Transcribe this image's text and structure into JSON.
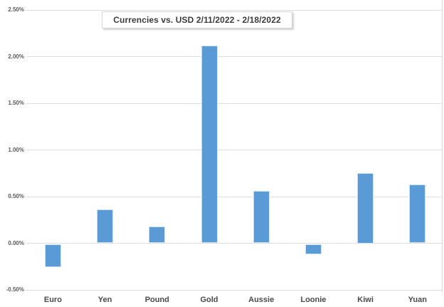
{
  "title": "Currencies vs. USD 2/11/2022 - 2/18/2022",
  "chart_data": {
    "type": "bar",
    "title": "Currencies vs. USD 2/11/2022 - 2/18/2022",
    "categories": [
      "Euro",
      "Yen",
      "Pound",
      "Gold",
      "Aussie",
      "Loonie",
      "Kiwi",
      "Yuan"
    ],
    "values": [
      -0.25,
      0.36,
      0.18,
      2.12,
      0.56,
      -0.11,
      0.75,
      0.63
    ],
    "value_unit": "percent change vs. USD",
    "xlabel": "",
    "ylabel": "",
    "ylim": [
      -0.5,
      2.5
    ],
    "y_ticks": [
      {
        "value": 2.5,
        "label": "2.50%"
      },
      {
        "value": 2.0,
        "label": "2.00%"
      },
      {
        "value": 1.5,
        "label": "1.50%"
      },
      {
        "value": 1.0,
        "label": "1.00%"
      },
      {
        "value": 0.5,
        "label": "0.50%"
      },
      {
        "value": 0.0,
        "label": "0.00%"
      },
      {
        "value": -0.5,
        "label": "-0.50%"
      }
    ],
    "grid": true,
    "legend": false
  },
  "colors": {
    "bar_fill": "#5b9bd5",
    "bar_border": "#cfe3f5",
    "gridline": "#dcdcdc",
    "plot_right_border": "#d9d9d9",
    "tick_label": "#595959",
    "category_label": "#4a4a4a",
    "title_text": "#3b3b3b",
    "title_border": "#d6d6d6",
    "background": "#ffffff"
  }
}
